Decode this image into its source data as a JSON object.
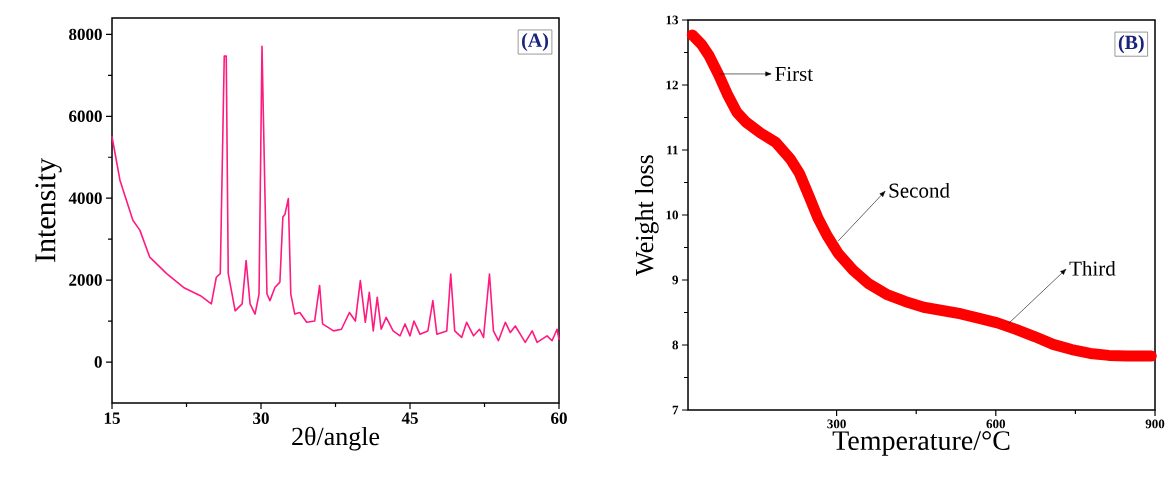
{
  "chart_data": [
    {
      "type": "line",
      "xlabel": "2θ/angle",
      "ylabel": "Intensity",
      "color": "#ff1a80",
      "xlim": [
        15,
        60
      ],
      "ylim": [
        -1000,
        8400
      ],
      "xticks": [
        15,
        30,
        45,
        60
      ],
      "yticks": [
        0,
        2000,
        4000,
        6000,
        8000
      ],
      "annotations": [
        "(A)"
      ],
      "x": [
        15,
        15.8,
        17.1,
        17.8,
        18.8,
        20.5,
        22.2,
        23.9,
        25.0,
        25.5,
        25.9,
        26.3,
        26.5,
        26.7,
        27.4,
        28.1,
        28.5,
        28.9,
        29.4,
        29.8,
        30.1,
        30.3,
        30.6,
        30.9,
        31.4,
        31.9,
        32.2,
        32.4,
        32.75,
        33.0,
        33.4,
        33.9,
        34.6,
        35.4,
        35.9,
        36.2,
        37.3,
        38.1,
        38.9,
        39.5,
        40.0,
        40.5,
        40.9,
        41.3,
        41.7,
        42.1,
        42.6,
        43.3,
        44.0,
        44.5,
        45.0,
        45.4,
        46.0,
        46.8,
        47.3,
        47.7,
        48.7,
        49.1,
        49.5,
        50.2,
        50.7,
        51.4,
        52.0,
        52.4,
        53.0,
        53.4,
        53.9,
        54.6,
        55.1,
        55.6,
        56.1,
        56.6,
        57.3,
        57.8,
        58.8,
        59.3,
        59.8,
        60
      ],
      "values": [
        5500,
        4440,
        3460,
        3220,
        2560,
        2160,
        1820,
        1620,
        1420,
        2070,
        2160,
        7470,
        7470,
        2160,
        1250,
        1420,
        2480,
        1420,
        1170,
        1660,
        7710,
        5260,
        1660,
        1500,
        1820,
        1950,
        3540,
        3600,
        3990,
        1660,
        1170,
        1210,
        970,
        1000,
        1870,
        930,
        760,
        800,
        1210,
        1000,
        1990,
        970,
        1700,
        760,
        1580,
        800,
        1090,
        760,
        640,
        930,
        640,
        1000,
        680,
        760,
        1500,
        680,
        760,
        2150,
        760,
        600,
        970,
        640,
        800,
        600,
        2150,
        760,
        520,
        970,
        720,
        880,
        680,
        480,
        760,
        480,
        640,
        520,
        800,
        560
      ]
    },
    {
      "type": "line",
      "xlabel": "Temperature/°C",
      "ylabel": "Weight loss",
      "color": "#ff0000",
      "xlim": [
        20,
        900
      ],
      "ylim": [
        7,
        13
      ],
      "xticks": [
        300,
        600,
        900
      ],
      "yticks": [
        7,
        8,
        9,
        10,
        11,
        12,
        13
      ],
      "annotations": [
        "(B)",
        {
          "text": "First",
          "x": 79,
          "y": 12.17
        },
        {
          "text": "Second",
          "x": 303,
          "y": 9.6
        },
        {
          "text": "Third",
          "x": 624,
          "y": 8.33
        }
      ],
      "x": [
        28,
        45,
        59,
        77,
        94,
        112,
        129,
        157,
        185,
        213,
        230,
        248,
        265,
        283,
        303,
        331,
        359,
        394,
        429,
        464,
        499,
        534,
        569,
        603,
        638,
        673,
        708,
        743,
        778,
        813,
        848,
        893
      ],
      "values": [
        12.77,
        12.63,
        12.46,
        12.17,
        11.86,
        11.58,
        11.43,
        11.26,
        11.12,
        10.86,
        10.64,
        10.29,
        9.95,
        9.67,
        9.41,
        9.15,
        8.95,
        8.78,
        8.67,
        8.58,
        8.53,
        8.48,
        8.41,
        8.34,
        8.24,
        8.13,
        8.01,
        7.93,
        7.87,
        7.84,
        7.83,
        7.83
      ]
    }
  ]
}
